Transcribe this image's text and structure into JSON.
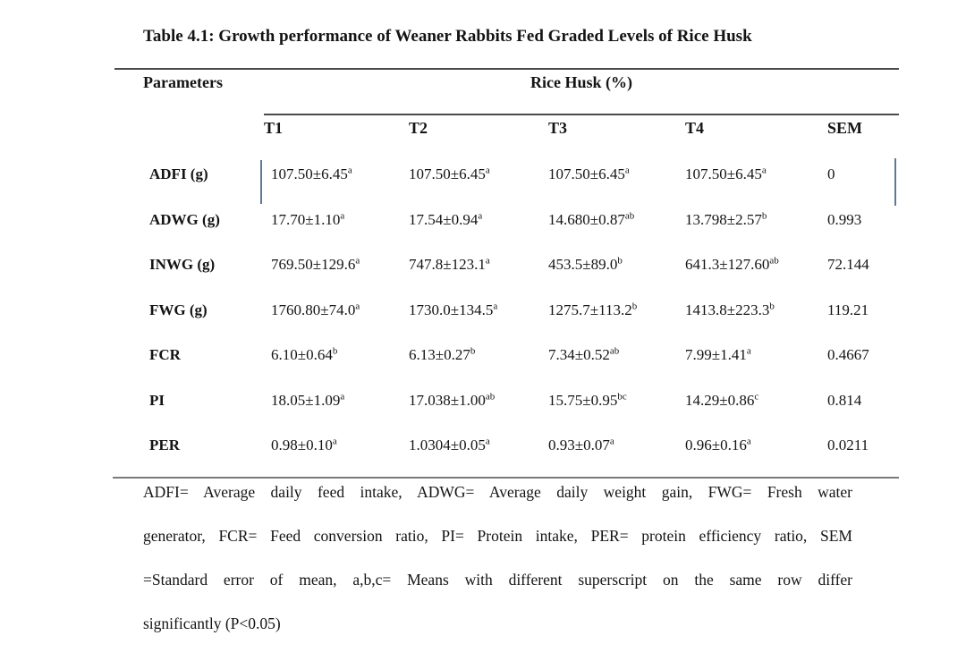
{
  "title": "Table 4.1: Growth performance of Weaner Rabbits Fed Graded Levels of Rice Husk",
  "table": {
    "param_header": "Parameters",
    "group_header": "Rice Husk (%)",
    "columns": [
      "T1",
      "T2",
      "T3",
      "T4",
      "SEM"
    ],
    "rows": [
      {
        "label": "ADFI (g)",
        "cells": [
          {
            "value": "107.50±6.45",
            "sup": "a"
          },
          {
            "value": "107.50±6.45",
            "sup": "a"
          },
          {
            "value": "107.50±6.45",
            "sup": "a"
          },
          {
            "value": "107.50±6.45",
            "sup": "a"
          }
        ],
        "sem": "0"
      },
      {
        "label": "ADWG (g)",
        "cells": [
          {
            "value": "17.70±1.10",
            "sup": "a"
          },
          {
            "value": "17.54±0.94",
            "sup": "a"
          },
          {
            "value": "14.680±0.87",
            "sup": "ab"
          },
          {
            "value": "13.798±2.57",
            "sup": "b"
          }
        ],
        "sem": "0.993"
      },
      {
        "label": "INWG (g)",
        "cells": [
          {
            "value": "769.50±129.6",
            "sup": "a"
          },
          {
            "value": "747.8±123.1",
            "sup": "a"
          },
          {
            "value": "453.5±89.0",
            "sup": "b"
          },
          {
            "value": "641.3±127.60",
            "sup": "ab"
          }
        ],
        "sem": "72.144"
      },
      {
        "label": "FWG (g)",
        "cells": [
          {
            "value": "1760.80±74.0",
            "sup": "a"
          },
          {
            "value": "1730.0±134.5",
            "sup": "a"
          },
          {
            "value": "1275.7±113.2",
            "sup": "b"
          },
          {
            "value": "1413.8±223.3",
            "sup": "b"
          }
        ],
        "sem": "119.21"
      },
      {
        "label": "FCR",
        "cells": [
          {
            "value": "6.10±0.64",
            "sup": "b"
          },
          {
            "value": "6.13±0.27",
            "sup": "b"
          },
          {
            "value": "7.34±0.52",
            "sup": "ab"
          },
          {
            "value": "7.99±1.41",
            "sup": "a"
          }
        ],
        "sem": "0.4667"
      },
      {
        "label": "PI",
        "cells": [
          {
            "value": "18.05±1.09",
            "sup": "a"
          },
          {
            "value": "17.038±1.00",
            "sup": "ab"
          },
          {
            "value": "15.75±0.95",
            "sup": "bc"
          },
          {
            "value": "14.29±0.86",
            "sup": "c"
          }
        ],
        "sem": "0.814"
      },
      {
        "label": "PER",
        "cells": [
          {
            "value": "0.98±0.10",
            "sup": "a"
          },
          {
            "value": "1.0304±0.05",
            "sup": "a"
          },
          {
            "value": "0.93±0.07",
            "sup": "a"
          },
          {
            "value": "0.96±0.16",
            "sup": "a"
          }
        ],
        "sem": "0.0211"
      }
    ]
  },
  "footnote": {
    "lines": [
      "ADFI= Average daily feed intake, ADWG= Average daily weight gain, FWG= Fresh water",
      "generator, FCR= Feed conversion ratio, PI= Protein intake, PER= protein efficiency ratio, SEM",
      "=Standard error of mean, a,b,c= Means with different superscript on the same row differ",
      "significantly (P<0.05)"
    ]
  },
  "colors": {
    "vertical_bar": "#5e7995"
  }
}
